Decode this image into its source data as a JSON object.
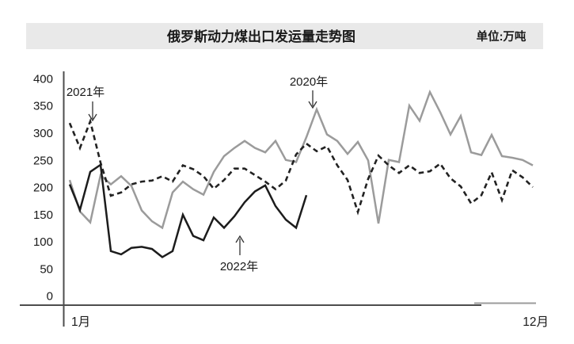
{
  "header": {
    "title": "俄罗斯动力煤出口发运量走势图",
    "unit_label": "单位:万吨"
  },
  "axes": {
    "y_ticks": [
      "400",
      "350",
      "300",
      "250",
      "200",
      "150",
      "100",
      "50",
      "0"
    ],
    "x_start_label": "1月",
    "x_end_label": "12月"
  },
  "annotations": {
    "label_2021": "2021年",
    "label_2020": "2020年",
    "label_2022": "2022年"
  },
  "colors": {
    "header_band": "#e9e9e9",
    "axis": "#4d4d4d",
    "axis_extension": "#9b9b9b",
    "arrow": "#333333",
    "series_2020": "#9b9b9b",
    "series_2021": "#222222",
    "series_2022": "#1c1c1c"
  },
  "chart_data": {
    "type": "line",
    "title": "俄罗斯动力煤出口发运量走势图",
    "unit": "万吨",
    "x_axis_range": [
      "1月",
      "12月"
    ],
    "x_resolution": "weekly",
    "ylim": [
      0,
      400
    ],
    "y_tick_step": 50,
    "grid": false,
    "legend_position": "inline-annotations",
    "series": [
      {
        "name": "2020年",
        "key": "2020",
        "style": "solid",
        "color": "#9b9b9b",
        "values": [
          213,
          155,
          135,
          222,
          205,
          220,
          202,
          157,
          137,
          125,
          190,
          210,
          196,
          186,
          228,
          257,
          272,
          285,
          272,
          264,
          285,
          250,
          246,
          292,
          343,
          297,
          285,
          261,
          283,
          249,
          133,
          250,
          246,
          350,
          322,
          375,
          338,
          297,
          331,
          264,
          259,
          296,
          257,
          254,
          250,
          240
        ]
      },
      {
        "name": "2021年",
        "key": "2021",
        "style": "dashed",
        "color": "#222222",
        "values": [
          318,
          272,
          321,
          245,
          184,
          190,
          205,
          210,
          212,
          220,
          210,
          240,
          233,
          220,
          197,
          213,
          234,
          234,
          222,
          210,
          196,
          212,
          260,
          280,
          266,
          275,
          240,
          213,
          154,
          215,
          258,
          240,
          226,
          240,
          226,
          229,
          243,
          216,
          201,
          170,
          185,
          227,
          176,
          231,
          218,
          200
        ]
      },
      {
        "name": "2022年",
        "key": "2022",
        "style": "solid",
        "color": "#1c1c1c",
        "values": [
          205,
          158,
          228,
          241,
          82,
          76,
          88,
          90,
          86,
          71,
          82,
          149,
          110,
          102,
          144,
          125,
          146,
          172,
          192,
          203,
          165,
          140,
          125,
          185
        ]
      }
    ]
  }
}
